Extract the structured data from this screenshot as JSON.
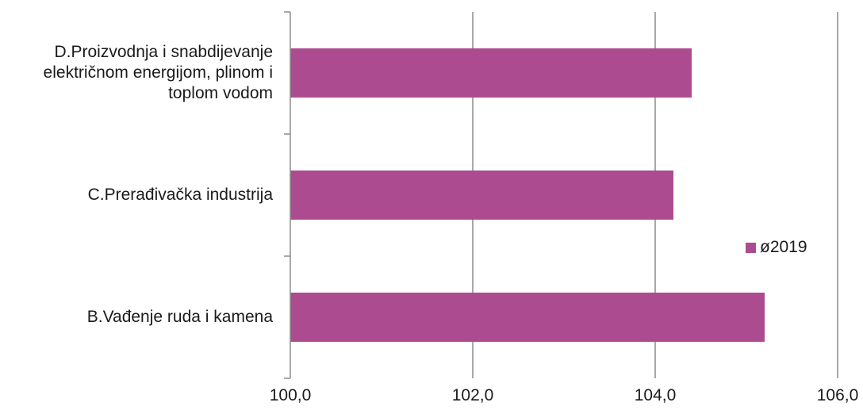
{
  "chart_data": {
    "type": "bar",
    "orientation": "horizontal",
    "title": "",
    "xlabel": "",
    "ylabel": "",
    "categories": [
      "D.Proizvodnja i snabdijevanje električnom energijom, plinom i toplom vodom",
      "C.Prerađivačka industrija",
      "B.Vađenje ruda i kamena"
    ],
    "category_label_lines": [
      [
        "D.Proizvodnja i snabdijevanje",
        "električnom energijom, plinom i",
        "toplom vodom"
      ],
      [
        "C.Prerađivačka industrija"
      ],
      [
        "B.Vađenje ruda i kamena"
      ]
    ],
    "series": [
      {
        "name": "ø2019",
        "values": [
          104.4,
          104.2,
          105.2
        ],
        "color": "#ad4b91"
      }
    ],
    "xlim": [
      100.0,
      106.0
    ],
    "xticks": [
      "100,0",
      "102,0",
      "104,0",
      "106,0"
    ],
    "xtick_values": [
      100,
      102,
      104,
      106
    ],
    "grid": true,
    "gridline_color": "#8c8c8c",
    "legend_position": "right"
  }
}
